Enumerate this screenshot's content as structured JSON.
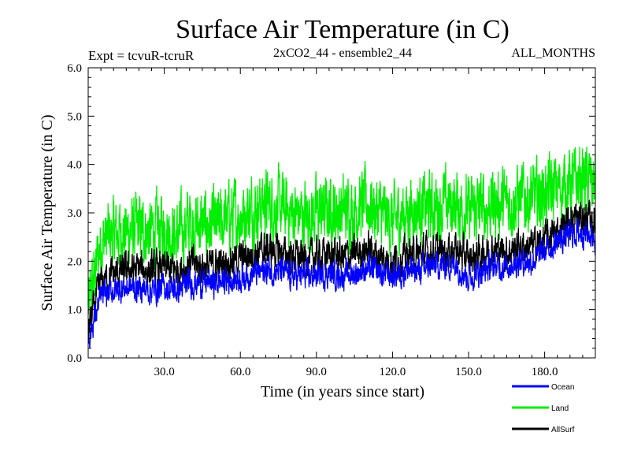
{
  "chart_data": {
    "type": "line",
    "title": "Surface Air Temperature (in C)",
    "experiment_label": "Expt = tcvuR-tcruR",
    "subtitle": "2xCO2_44 - ensemble2_44",
    "months_label": "ALL_MONTHS",
    "xlabel": "Time (in years since start)",
    "ylabel": "Surface Air Temperature (in C)",
    "xlim": [
      0,
      200
    ],
    "ylim": [
      0.0,
      6.0
    ],
    "x_ticks": [
      30.0,
      60.0,
      90.0,
      120.0,
      150.0,
      180.0
    ],
    "x_tick_labels": [
      "30.0",
      "60.0",
      "90.0",
      "120.0",
      "150.0",
      "180.0"
    ],
    "y_ticks": [
      0.0,
      1.0,
      2.0,
      3.0,
      4.0,
      5.0,
      6.0
    ],
    "y_tick_labels": [
      "0.0",
      "1.0",
      "2.0",
      "3.0",
      "4.0",
      "5.0",
      "6.0"
    ],
    "legend_position": "bottom-right, below plot",
    "grid": false,
    "series": [
      {
        "name": "Land",
        "color": "#00ee00",
        "x": [
          0,
          5,
          10,
          15,
          20,
          25,
          30,
          35,
          40,
          45,
          50,
          55,
          60,
          65,
          70,
          75,
          80,
          85,
          90,
          95,
          100,
          105,
          110,
          115,
          120,
          125,
          130,
          135,
          140,
          145,
          150,
          155,
          160,
          165,
          170,
          175,
          180,
          185,
          190,
          195,
          200
        ],
        "values": [
          1.0,
          2.4,
          2.55,
          2.6,
          2.65,
          2.6,
          2.7,
          2.5,
          2.8,
          2.75,
          2.7,
          2.9,
          2.95,
          3.1,
          3.2,
          3.1,
          3.0,
          2.95,
          3.0,
          3.05,
          3.05,
          3.1,
          3.2,
          3.0,
          2.8,
          3.0,
          3.1,
          3.1,
          3.15,
          3.2,
          3.0,
          3.1,
          3.2,
          3.2,
          3.3,
          3.3,
          3.4,
          3.5,
          3.6,
          3.7,
          3.6
        ],
        "noise": 0.55
      },
      {
        "name": "AllSurf",
        "color": "#000000",
        "x": [
          0,
          5,
          10,
          15,
          20,
          25,
          30,
          35,
          40,
          45,
          50,
          55,
          60,
          65,
          70,
          75,
          80,
          85,
          90,
          95,
          100,
          105,
          110,
          115,
          120,
          125,
          130,
          135,
          140,
          145,
          150,
          155,
          160,
          165,
          170,
          175,
          180,
          185,
          190,
          195,
          200
        ],
        "values": [
          0.6,
          1.55,
          1.75,
          1.8,
          1.85,
          1.8,
          1.85,
          1.8,
          1.95,
          1.9,
          1.9,
          2.0,
          2.05,
          2.15,
          2.25,
          2.2,
          2.1,
          2.05,
          2.1,
          2.15,
          2.1,
          2.15,
          2.25,
          2.1,
          2.0,
          2.1,
          2.15,
          2.2,
          2.2,
          2.25,
          2.05,
          2.15,
          2.25,
          2.2,
          2.3,
          2.3,
          2.45,
          2.6,
          2.85,
          2.9,
          2.8
        ],
        "noise": 0.28
      },
      {
        "name": "Ocean",
        "color": "#0000ff",
        "x": [
          0,
          5,
          10,
          15,
          20,
          25,
          30,
          35,
          40,
          45,
          50,
          55,
          60,
          65,
          70,
          75,
          80,
          85,
          90,
          95,
          100,
          105,
          110,
          115,
          120,
          125,
          130,
          135,
          140,
          145,
          150,
          155,
          160,
          165,
          170,
          175,
          180,
          185,
          190,
          195,
          200
        ],
        "values": [
          0.4,
          1.25,
          1.4,
          1.45,
          1.45,
          1.4,
          1.45,
          1.4,
          1.55,
          1.55,
          1.55,
          1.6,
          1.65,
          1.75,
          1.8,
          1.8,
          1.7,
          1.7,
          1.7,
          1.75,
          1.7,
          1.75,
          1.85,
          1.75,
          1.7,
          1.8,
          1.8,
          1.9,
          1.9,
          1.95,
          1.65,
          1.8,
          1.9,
          1.9,
          2.0,
          2.0,
          2.2,
          2.4,
          2.55,
          2.6,
          2.5
        ],
        "noise": 0.22
      }
    ]
  }
}
